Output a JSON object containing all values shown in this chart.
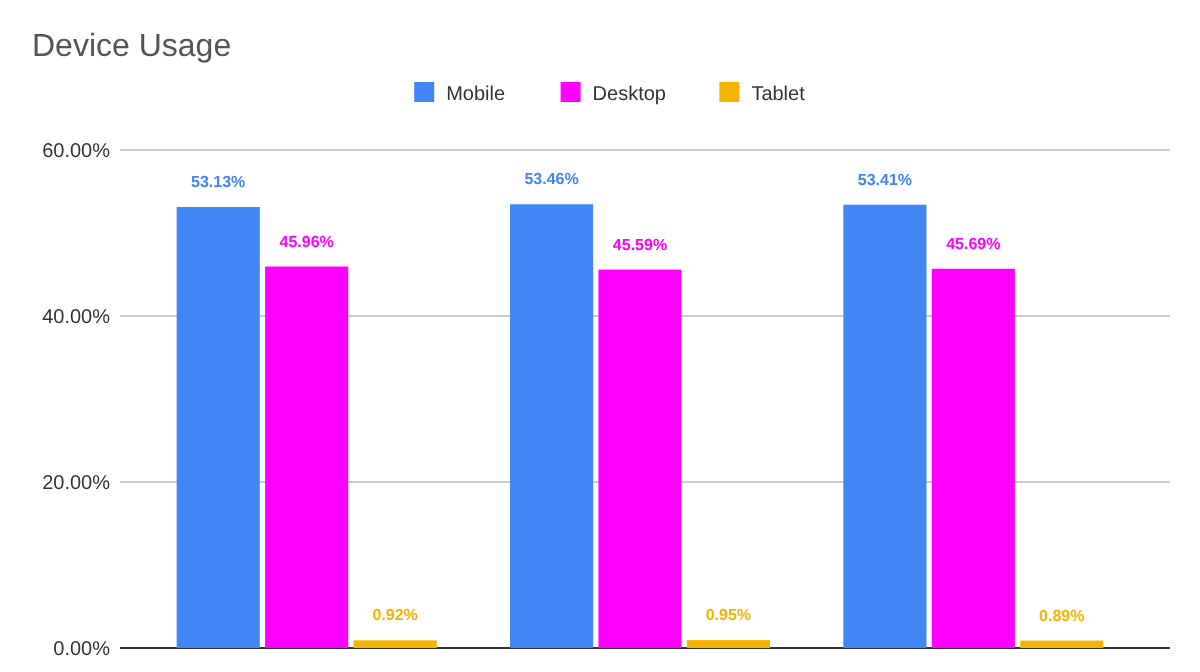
{
  "chart_data": {
    "type": "bar",
    "title": "Device Usage",
    "categories": [
      null,
      null,
      null
    ],
    "series": [
      {
        "name": "Mobile",
        "color": "#4285f4",
        "values": [
          53.13,
          53.46,
          53.41
        ],
        "value_labels": [
          "53.13%",
          "53.46%",
          "53.41%"
        ]
      },
      {
        "name": "Desktop",
        "color": "#ff00ff",
        "values": [
          45.96,
          45.59,
          45.69
        ],
        "value_labels": [
          "45.96%",
          "45.59%",
          "45.69%"
        ]
      },
      {
        "name": "Tablet",
        "color": "#f4b400",
        "values": [
          0.92,
          0.95,
          0.89
        ],
        "value_labels": [
          "0.92%",
          "0.95%",
          "0.89%"
        ]
      }
    ],
    "ylim": [
      0,
      60
    ],
    "yticks": [
      {
        "value": 0,
        "label": "0.00%"
      },
      {
        "value": 20,
        "label": "20.00%"
      },
      {
        "value": 40,
        "label": "40.00%"
      },
      {
        "value": 60,
        "label": "60.00%"
      }
    ],
    "grid": "y",
    "legend": "top"
  }
}
